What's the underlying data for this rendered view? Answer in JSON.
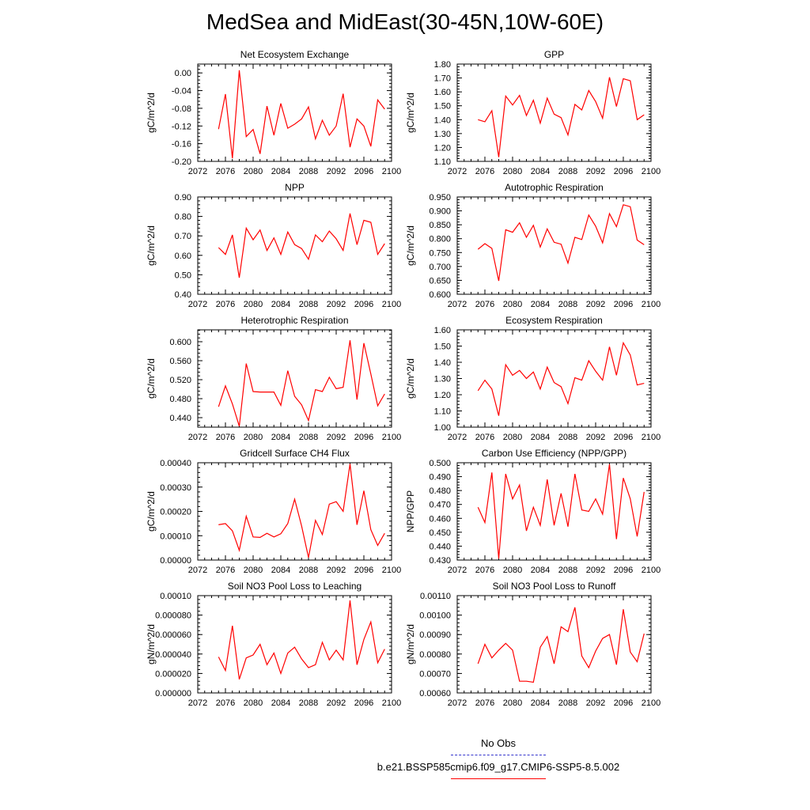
{
  "title": "MedSea and MidEast(30-45N,10W-60E)",
  "legend": {
    "obs_label": "No Obs",
    "obs_color": "#3333cc",
    "case_label": "b.e21.BSSP585cmip6.f09_g17.CMIP6-SSP5-8.5.002",
    "case_color": "#ff0000"
  },
  "chart_data": [
    {
      "type": "line",
      "title": "Net Ecosystem Exchange",
      "ylabel": "gC/m^2/d",
      "xlim": [
        2072,
        2100
      ],
      "x_ticks": [
        "2072",
        "2076",
        "2080",
        "2084",
        "2088",
        "2092",
        "2096",
        "2100"
      ],
      "ylim": [
        -0.2,
        0.02
      ],
      "y_ticks": [
        "0.00",
        "-0.04",
        "-0.08",
        "-0.12",
        "-0.16",
        "-0.20"
      ],
      "y_tick_values": [
        0.0,
        -0.04,
        -0.08,
        -0.12,
        -0.16,
        -0.2
      ],
      "series": [
        {
          "color": "#ff0000",
          "x": [
            2075,
            2076,
            2077,
            2078,
            2079,
            2080,
            2081,
            2082,
            2083,
            2084,
            2085,
            2086,
            2087,
            2088,
            2089,
            2090,
            2091,
            2092,
            2093,
            2094,
            2095,
            2096,
            2097,
            2098,
            2099
          ],
          "values": [
            -0.127,
            -0.048,
            -0.193,
            0.006,
            -0.144,
            -0.128,
            -0.183,
            -0.075,
            -0.141,
            -0.069,
            -0.125,
            -0.116,
            -0.104,
            -0.077,
            -0.149,
            -0.107,
            -0.141,
            -0.12,
            -0.047,
            -0.168,
            -0.104,
            -0.12,
            -0.166,
            -0.061,
            -0.082
          ]
        }
      ]
    },
    {
      "type": "line",
      "title": "GPP",
      "ylabel": "gC/m^2/d",
      "xlim": [
        2072,
        2100
      ],
      "x_ticks": [
        "2072",
        "2076",
        "2080",
        "2084",
        "2088",
        "2092",
        "2096",
        "2100"
      ],
      "ylim": [
        1.1,
        1.8
      ],
      "y_ticks": [
        "1.80",
        "1.70",
        "1.60",
        "1.50",
        "1.40",
        "1.30",
        "1.20",
        "1.10"
      ],
      "y_tick_values": [
        1.8,
        1.7,
        1.6,
        1.5,
        1.4,
        1.3,
        1.2,
        1.1
      ],
      "series": [
        {
          "color": "#ff0000",
          "x": [
            2075,
            2076,
            2077,
            2078,
            2079,
            2080,
            2081,
            2082,
            2083,
            2084,
            2085,
            2086,
            2087,
            2088,
            2089,
            2090,
            2091,
            2092,
            2093,
            2094,
            2095,
            2096,
            2097,
            2098,
            2099
          ],
          "values": [
            1.4,
            1.385,
            1.465,
            1.13,
            1.57,
            1.505,
            1.575,
            1.43,
            1.54,
            1.375,
            1.555,
            1.44,
            1.415,
            1.29,
            1.51,
            1.47,
            1.61,
            1.53,
            1.41,
            1.705,
            1.495,
            1.695,
            1.68,
            1.4,
            1.435
          ]
        }
      ]
    },
    {
      "type": "line",
      "title": "NPP",
      "ylabel": "gC/m^2/d",
      "xlim": [
        2072,
        2100
      ],
      "x_ticks": [
        "2072",
        "2076",
        "2080",
        "2084",
        "2088",
        "2092",
        "2096",
        "2100"
      ],
      "ylim": [
        0.4,
        0.9
      ],
      "y_ticks": [
        "0.90",
        "0.80",
        "0.70",
        "0.60",
        "0.50",
        "0.40"
      ],
      "y_tick_values": [
        0.9,
        0.8,
        0.7,
        0.6,
        0.5,
        0.4
      ],
      "series": [
        {
          "color": "#ff0000",
          "x": [
            2075,
            2076,
            2077,
            2078,
            2079,
            2080,
            2081,
            2082,
            2083,
            2084,
            2085,
            2086,
            2087,
            2088,
            2089,
            2090,
            2091,
            2092,
            2093,
            2094,
            2095,
            2096,
            2097,
            2098,
            2099
          ],
          "values": [
            0.64,
            0.605,
            0.705,
            0.485,
            0.74,
            0.68,
            0.73,
            0.625,
            0.69,
            0.605,
            0.72,
            0.655,
            0.635,
            0.58,
            0.705,
            0.67,
            0.725,
            0.685,
            0.625,
            0.815,
            0.655,
            0.78,
            0.77,
            0.605,
            0.66
          ]
        }
      ]
    },
    {
      "type": "line",
      "title": "Autotrophic Respiration",
      "ylabel": "gC/m^2/d",
      "xlim": [
        2072,
        2100
      ],
      "x_ticks": [
        "2072",
        "2076",
        "2080",
        "2084",
        "2088",
        "2092",
        "2096",
        "2100"
      ],
      "ylim": [
        0.6,
        0.95
      ],
      "y_ticks": [
        "0.950",
        "0.900",
        "0.850",
        "0.800",
        "0.750",
        "0.700",
        "0.650",
        "0.600"
      ],
      "y_tick_values": [
        0.95,
        0.9,
        0.85,
        0.8,
        0.75,
        0.7,
        0.65,
        0.6
      ],
      "series": [
        {
          "color": "#ff0000",
          "x": [
            2075,
            2076,
            2077,
            2078,
            2079,
            2080,
            2081,
            2082,
            2083,
            2084,
            2085,
            2086,
            2087,
            2088,
            2089,
            2090,
            2091,
            2092,
            2093,
            2094,
            2095,
            2096,
            2097,
            2098,
            2099
          ],
          "values": [
            0.762,
            0.782,
            0.765,
            0.648,
            0.832,
            0.823,
            0.857,
            0.805,
            0.848,
            0.77,
            0.835,
            0.787,
            0.78,
            0.712,
            0.805,
            0.797,
            0.885,
            0.845,
            0.785,
            0.89,
            0.843,
            0.922,
            0.915,
            0.795,
            0.778
          ]
        }
      ]
    },
    {
      "type": "line",
      "title": "Heterotrophic Respiration",
      "ylabel": "gC/m^2/d",
      "xlim": [
        2072,
        2100
      ],
      "x_ticks": [
        "2072",
        "2076",
        "2080",
        "2084",
        "2088",
        "2092",
        "2096",
        "2100"
      ],
      "ylim": [
        0.42,
        0.625
      ],
      "y_ticks": [
        "0.600",
        "0.560",
        "0.520",
        "0.480",
        "0.440"
      ],
      "y_tick_values": [
        0.6,
        0.56,
        0.52,
        0.48,
        0.44
      ],
      "series": [
        {
          "color": "#ff0000",
          "x": [
            2075,
            2076,
            2077,
            2078,
            2079,
            2080,
            2081,
            2082,
            2083,
            2084,
            2085,
            2086,
            2087,
            2088,
            2089,
            2090,
            2091,
            2092,
            2093,
            2094,
            2095,
            2096,
            2097,
            2098,
            2099
          ],
          "values": [
            0.463,
            0.507,
            0.469,
            0.422,
            0.554,
            0.495,
            0.494,
            0.494,
            0.494,
            0.466,
            0.539,
            0.485,
            0.467,
            0.434,
            0.499,
            0.495,
            0.525,
            0.501,
            0.504,
            0.603,
            0.478,
            0.597,
            0.532,
            0.465,
            0.49
          ]
        }
      ]
    },
    {
      "type": "line",
      "title": "Ecosystem Respiration",
      "ylabel": "gC/m^2/d",
      "xlim": [
        2072,
        2100
      ],
      "x_ticks": [
        "2072",
        "2076",
        "2080",
        "2084",
        "2088",
        "2092",
        "2096",
        "2100"
      ],
      "ylim": [
        1.0,
        1.6
      ],
      "y_ticks": [
        "1.60",
        "1.50",
        "1.40",
        "1.30",
        "1.20",
        "1.10",
        "1.00"
      ],
      "y_tick_values": [
        1.6,
        1.5,
        1.4,
        1.3,
        1.2,
        1.1,
        1.0
      ],
      "series": [
        {
          "color": "#ff0000",
          "x": [
            2075,
            2076,
            2077,
            2078,
            2079,
            2080,
            2081,
            2082,
            2083,
            2084,
            2085,
            2086,
            2087,
            2088,
            2089,
            2090,
            2091,
            2092,
            2093,
            2094,
            2095,
            2096,
            2097,
            2098,
            2099
          ],
          "values": [
            1.225,
            1.29,
            1.235,
            1.07,
            1.385,
            1.32,
            1.35,
            1.3,
            1.34,
            1.235,
            1.37,
            1.275,
            1.25,
            1.145,
            1.305,
            1.29,
            1.41,
            1.345,
            1.29,
            1.495,
            1.32,
            1.52,
            1.445,
            1.26,
            1.27
          ]
        }
      ]
    },
    {
      "type": "line",
      "title": "Gridcell Surface CH4 Flux",
      "ylabel": "gC/m^2/d",
      "xlim": [
        2072,
        2100
      ],
      "x_ticks": [
        "2072",
        "2076",
        "2080",
        "2084",
        "2088",
        "2092",
        "2096",
        "2100"
      ],
      "ylim": [
        0.0,
        0.0004
      ],
      "y_ticks": [
        "0.00040",
        "0.00030",
        "0.00020",
        "0.00010",
        "0.00000"
      ],
      "y_tick_values": [
        0.0004,
        0.0003,
        0.0002,
        0.0001,
        0.0
      ],
      "series": [
        {
          "color": "#ff0000",
          "x": [
            2075,
            2076,
            2077,
            2078,
            2079,
            2080,
            2081,
            2082,
            2083,
            2084,
            2085,
            2086,
            2087,
            2088,
            2089,
            2090,
            2091,
            2092,
            2093,
            2094,
            2095,
            2096,
            2097,
            2098,
            2099
          ],
          "values": [
            0.000145,
            0.00015,
            0.00012,
            4e-05,
            0.00018,
            9.5e-05,
            9.3e-05,
            0.00011,
            9.5e-05,
            0.000108,
            0.00015,
            0.00025,
            0.00014,
            1e-05,
            0.000163,
            0.000105,
            0.00023,
            0.00024,
            0.0002,
            0.000395,
            0.000145,
            0.000285,
            0.000125,
            6e-05,
            0.00011
          ]
        }
      ]
    },
    {
      "type": "line",
      "title": "Carbon Use Efficiency (NPP/GPP)",
      "ylabel": "NPP/GPP",
      "xlim": [
        2072,
        2100
      ],
      "x_ticks": [
        "2072",
        "2076",
        "2080",
        "2084",
        "2088",
        "2092",
        "2096",
        "2100"
      ],
      "ylim": [
        0.43,
        0.5
      ],
      "y_ticks": [
        "0.500",
        "0.490",
        "0.480",
        "0.470",
        "0.460",
        "0.450",
        "0.440",
        "0.430"
      ],
      "y_tick_values": [
        0.5,
        0.49,
        0.48,
        0.47,
        0.46,
        0.45,
        0.44,
        0.43
      ],
      "series": [
        {
          "color": "#ff0000",
          "x": [
            2075,
            2076,
            2077,
            2078,
            2079,
            2080,
            2081,
            2082,
            2083,
            2084,
            2085,
            2086,
            2087,
            2088,
            2089,
            2090,
            2091,
            2092,
            2093,
            2094,
            2095,
            2096,
            2097,
            2098,
            2099
          ],
          "values": [
            0.468,
            0.457,
            0.493,
            0.431,
            0.492,
            0.474,
            0.484,
            0.451,
            0.468,
            0.455,
            0.488,
            0.455,
            0.478,
            0.454,
            0.492,
            0.466,
            0.465,
            0.474,
            0.463,
            0.499,
            0.445,
            0.489,
            0.474,
            0.447,
            0.479
          ]
        }
      ]
    },
    {
      "type": "line",
      "title": "Soil NO3 Pool Loss to Leaching",
      "ylabel": "gN/m^2/d",
      "xlim": [
        2072,
        2100
      ],
      "x_ticks": [
        "2072",
        "2076",
        "2080",
        "2084",
        "2088",
        "2092",
        "2096",
        "2100"
      ],
      "ylim": [
        0.0,
        0.0001
      ],
      "y_ticks": [
        "0.00010",
        "0.000080",
        "0.000060",
        "0.000040",
        "0.000020",
        "0.000000"
      ],
      "y_tick_values": [
        0.0001,
        8e-05,
        6e-05,
        4e-05,
        2e-05,
        0.0
      ],
      "series": [
        {
          "color": "#ff0000",
          "x": [
            2075,
            2076,
            2077,
            2078,
            2079,
            2080,
            2081,
            2082,
            2083,
            2084,
            2085,
            2086,
            2087,
            2088,
            2089,
            2090,
            2091,
            2092,
            2093,
            2094,
            2095,
            2096,
            2097,
            2098,
            2099
          ],
          "values": [
            3.7e-05,
            2.3e-05,
            6.9e-05,
            1.4e-05,
            3.6e-05,
            3.9e-05,
            5e-05,
            2.9e-05,
            4.1e-05,
            2e-05,
            4.1e-05,
            4.7e-05,
            3.5e-05,
            2.6e-05,
            2.9e-05,
            5.2e-05,
            3.4e-05,
            4.4e-05,
            3.4e-05,
            9.5e-05,
            2.9e-05,
            5.5e-05,
            7.3e-05,
            3.1e-05,
            4.5e-05
          ]
        }
      ]
    },
    {
      "type": "line",
      "title": "Soil NO3 Pool Loss to Runoff",
      "ylabel": "gN/m^2/d",
      "xlim": [
        2072,
        2100
      ],
      "x_ticks": [
        "2072",
        "2076",
        "2080",
        "2084",
        "2088",
        "2092",
        "2096",
        "2100"
      ],
      "ylim": [
        0.0006,
        0.0011
      ],
      "y_ticks": [
        "0.00110",
        "0.00100",
        "0.00090",
        "0.00080",
        "0.00070",
        "0.00060"
      ],
      "y_tick_values": [
        0.0011,
        0.001,
        0.0009,
        0.0008,
        0.0007,
        0.0006
      ],
      "series": [
        {
          "color": "#ff0000",
          "x": [
            2075,
            2076,
            2077,
            2078,
            2079,
            2080,
            2081,
            2082,
            2083,
            2084,
            2085,
            2086,
            2087,
            2088,
            2089,
            2090,
            2091,
            2092,
            2093,
            2094,
            2095,
            2096,
            2097,
            2098,
            2099
          ],
          "values": [
            0.00075,
            0.00085,
            0.00078,
            0.00082,
            0.000855,
            0.00082,
            0.00066,
            0.00066,
            0.000655,
            0.000835,
            0.00089,
            0.00075,
            0.00094,
            0.000915,
            0.00104,
            0.00079,
            0.00073,
            0.000815,
            0.00088,
            0.0009,
            0.000745,
            0.00103,
            0.00081,
            0.00076,
            0.000905
          ]
        }
      ]
    }
  ]
}
